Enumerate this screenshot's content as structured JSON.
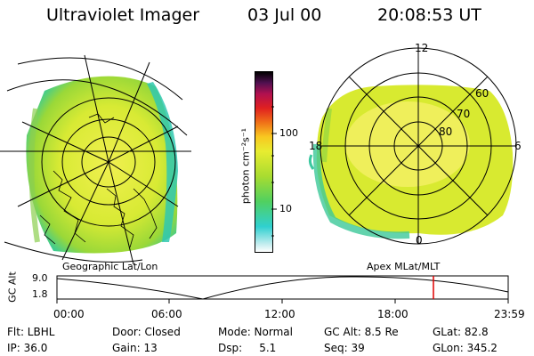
{
  "header": {
    "title": "Ultraviolet Imager",
    "date": "03 Jul 00",
    "time": "20:08:53 UT"
  },
  "colorbar": {
    "unit_label": "photon cm⁻²s⁻¹",
    "tick_100": "100",
    "tick_10": "10"
  },
  "polar_plot": {
    "mlt_labels": [
      "12",
      "18",
      "6",
      "0"
    ],
    "lat_labels": [
      "60",
      "70",
      "80"
    ]
  },
  "panels": {
    "left_caption": "Geographic Lat/Lon",
    "right_caption": "Apex  MLat/MLT"
  },
  "altitude_plot": {
    "axis_label": "GC Alt",
    "y_ticks": [
      "9.0",
      "1.8"
    ],
    "time_ticks": [
      "00:00",
      "06:00",
      "12:00",
      "18:00",
      "23:59"
    ]
  },
  "footer": {
    "filter": "Flt: LBHL",
    "door": "Door: Closed",
    "mode": "Mode: Normal",
    "gc_alt": "GC Alt: 8.5 Re",
    "glat": "GLat:  82.8",
    "ip": "IP: 36.0",
    "gain": "Gain: 13",
    "dsp": "Dsp:     5.1",
    "seq": "Seq: 39",
    "glon": "GLon: 345.2"
  },
  "colors": {
    "marker": "#e00000",
    "aurora_main": "#d2e830",
    "aurora_edge": "#2ec8a0"
  }
}
